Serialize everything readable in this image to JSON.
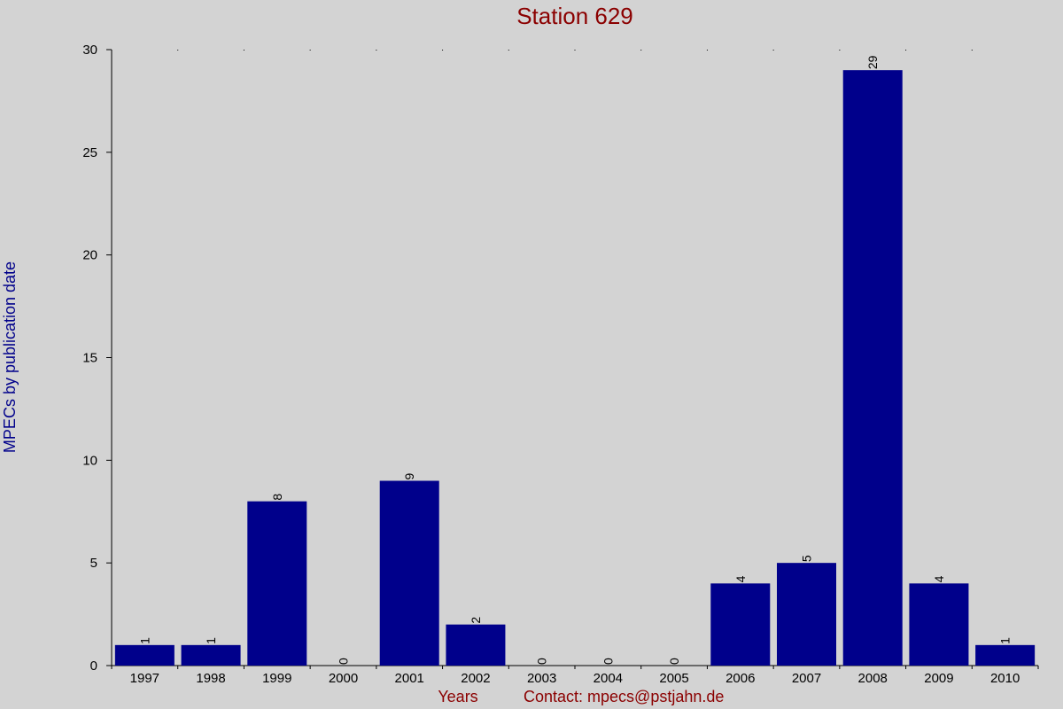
{
  "chart_data": {
    "type": "bar",
    "title": "Station 629",
    "xlabel": "Years",
    "ylabel": "MPECs by publication date",
    "footer_contact": "Contact: mpecs@pstjahn.de",
    "categories": [
      "1997",
      "1998",
      "1999",
      "2000",
      "2001",
      "2002",
      "2003",
      "2004",
      "2005",
      "2006",
      "2007",
      "2008",
      "2009",
      "2010"
    ],
    "values": [
      1,
      1,
      8,
      0,
      9,
      2,
      0,
      0,
      0,
      4,
      5,
      29,
      4,
      1
    ],
    "ylim": [
      0,
      30
    ],
    "yticks": [
      0,
      5,
      10,
      15,
      20,
      25,
      30
    ],
    "grid": false,
    "legend": "none"
  },
  "colors": {
    "background": "#d3d3d3",
    "bar": "#00008b",
    "title": "#8b0000",
    "xlabel": "#8b0000",
    "ylabel": "#00008b",
    "axis": "#000000"
  }
}
